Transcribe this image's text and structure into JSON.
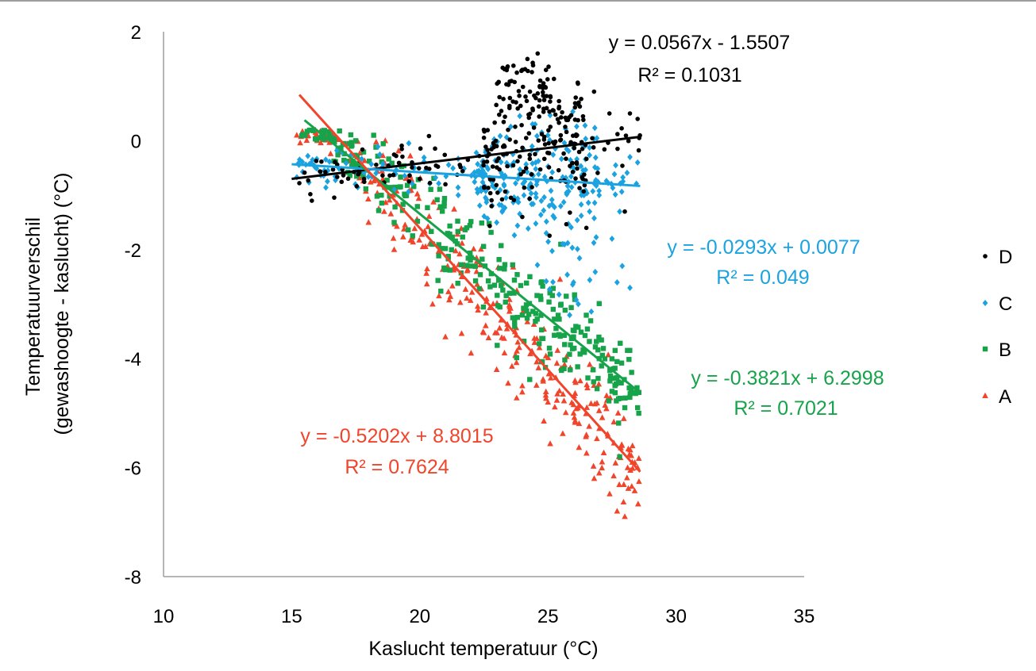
{
  "chart_data": {
    "type": "scatter",
    "title": "",
    "xlabel": "Kaslucht temperatuur (°C)",
    "ylabel_lines": [
      "Temperatuurverschil",
      "(gewashoogte - kaslucht) (°C)"
    ],
    "xlim": [
      10,
      35
    ],
    "ylim": [
      -8,
      2
    ],
    "xticks": [
      "10",
      "15",
      "20",
      "25",
      "30",
      "35"
    ],
    "yticks": [
      "2",
      "0",
      "-2",
      "-4",
      "-6",
      "-8"
    ],
    "grid": false,
    "legend_position": "right",
    "legend": [
      "D",
      "C",
      "B",
      "A"
    ],
    "series": [
      {
        "name": "D",
        "color": "#000000",
        "marker": "circle",
        "x_range": [
          15,
          28.6
        ],
        "dense_x": [
          22.5,
          26.5
        ],
        "dense_sd": 1.6,
        "trend": {
          "slope": 0.0567,
          "intercept": -1.5507,
          "x": [
            15,
            28.6
          ]
        },
        "equation": "y = 0.0567x - 1.5507",
        "r2": "R² = 0.1031",
        "approx_points": [
          [
            24.0,
            1.3
          ],
          [
            24.2,
            1.5
          ],
          [
            24.6,
            1.6
          ],
          [
            24.3,
            0.9
          ],
          [
            23.5,
            0.6
          ],
          [
            25.1,
            0.8
          ],
          [
            26.2,
            0.7
          ],
          [
            26.8,
            0.9
          ],
          [
            27.4,
            0.5
          ],
          [
            28.2,
            0.5
          ],
          [
            28.5,
            0.4
          ],
          [
            22.5,
            0.2
          ],
          [
            23.0,
            -0.1
          ],
          [
            25.5,
            0.1
          ],
          [
            26.5,
            -1.6
          ],
          [
            28.0,
            -1.3
          ],
          [
            22.8,
            -1.2
          ],
          [
            24.0,
            -1.4
          ],
          [
            21.0,
            -0.8
          ],
          [
            20.0,
            -0.7
          ]
        ]
      },
      {
        "name": "C",
        "color": "#1aa3e0",
        "marker": "diamond",
        "x_range": [
          15.2,
          28.5
        ],
        "dense_x": [
          22,
          27
        ],
        "dense_sd": 1.8,
        "trend": {
          "slope": -0.0293,
          "intercept": 0.0077,
          "x": [
            15,
            28.6
          ]
        },
        "equation": "y = -0.0293x + 0.0077",
        "r2": "R² = 0.049",
        "approx_points": [
          [
            24.5,
            0.3
          ],
          [
            25.0,
            0.1
          ],
          [
            26.0,
            -0.5
          ],
          [
            27.0,
            -1.0
          ],
          [
            27.8,
            -1.3
          ],
          [
            27.5,
            -1.8
          ],
          [
            27.9,
            -2.3
          ],
          [
            27.7,
            -2.6
          ],
          [
            28.2,
            -2.7
          ],
          [
            26.0,
            -2.6
          ],
          [
            28.5,
            -0.4
          ],
          [
            28.2,
            -0.3
          ],
          [
            19.0,
            -0.9
          ],
          [
            21.5,
            -1.0
          ],
          [
            23.0,
            -1.5
          ],
          [
            25.5,
            -1.2
          ]
        ]
      },
      {
        "name": "B",
        "color": "#17a34a",
        "marker": "square",
        "x_range": [
          15.3,
          28.6
        ],
        "noise_sd": 0.42,
        "trend": {
          "slope": -0.3821,
          "intercept": 6.2998,
          "x": [
            15.5,
            28.6
          ]
        },
        "equation": "y = -0.3821x + 6.2998",
        "r2": "R² = 0.7021",
        "approx_points": [
          [
            18.2,
            0.1
          ],
          [
            17.5,
            0.0
          ],
          [
            18.5,
            -1.0
          ],
          [
            19.0,
            -1.5
          ],
          [
            20.5,
            -1.9
          ],
          [
            22.0,
            -2.3
          ],
          [
            23.5,
            -2.8
          ],
          [
            24.0,
            -3.2
          ],
          [
            25.5,
            -1.9
          ],
          [
            26.0,
            -3.6
          ],
          [
            27.0,
            -4.0
          ],
          [
            27.5,
            -4.6
          ],
          [
            28.0,
            -4.9
          ],
          [
            28.5,
            -4.9
          ],
          [
            27.8,
            -5.8
          ]
        ]
      },
      {
        "name": "A",
        "color": "#f0452b",
        "marker": "triangle",
        "x_range": [
          15.2,
          28.6
        ],
        "noise_sd": 0.5,
        "trend": {
          "slope": -0.5202,
          "intercept": 8.8015,
          "x": [
            15.3,
            28.6
          ]
        },
        "equation": "y = -0.5202x + 8.8015",
        "r2": "R² = 0.7624",
        "approx_points": [
          [
            15.2,
            0.1
          ],
          [
            16.0,
            0.0
          ],
          [
            18.0,
            -1.5
          ],
          [
            19.0,
            -2.0
          ],
          [
            20.5,
            -3.0
          ],
          [
            21.0,
            -3.6
          ],
          [
            22.0,
            -3.9
          ],
          [
            23.0,
            -4.2
          ],
          [
            24.0,
            -4.5
          ],
          [
            25.0,
            -4.8
          ],
          [
            26.0,
            -5.0
          ],
          [
            26.5,
            -5.4
          ],
          [
            27.0,
            -6.1
          ],
          [
            27.7,
            -6.8
          ],
          [
            28.0,
            -6.9
          ],
          [
            28.5,
            -6.0
          ],
          [
            28.3,
            -5.6
          ]
        ]
      }
    ]
  }
}
